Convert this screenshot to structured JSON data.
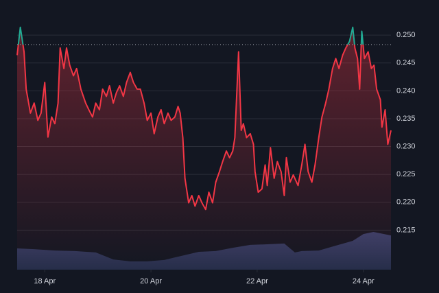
{
  "chart_data": {
    "type": "area",
    "x": [
      17.48,
      17.54,
      17.61,
      17.65,
      17.73,
      17.8,
      17.87,
      17.93,
      18.0,
      18.06,
      18.13,
      18.19,
      18.25,
      18.29,
      18.36,
      18.41,
      18.47,
      18.54,
      18.6,
      18.68,
      18.77,
      18.83,
      18.9,
      18.96,
      19.03,
      19.09,
      19.16,
      19.22,
      19.29,
      19.35,
      19.41,
      19.48,
      19.54,
      19.61,
      19.67,
      19.74,
      19.8,
      19.87,
      19.93,
      20.0,
      20.06,
      20.13,
      20.19,
      20.25,
      20.32,
      20.38,
      20.45,
      20.51,
      20.55,
      20.6,
      20.64,
      20.71,
      20.77,
      20.83,
      20.9,
      20.96,
      21.03,
      21.09,
      21.16,
      21.22,
      21.29,
      21.35,
      21.42,
      21.48,
      21.54,
      21.58,
      21.65,
      21.7,
      21.74,
      21.8,
      21.87,
      21.93,
      21.96,
      22.02,
      22.09,
      22.15,
      22.19,
      22.25,
      22.32,
      22.38,
      22.45,
      22.51,
      22.55,
      22.62,
      22.68,
      22.77,
      22.84,
      22.9,
      22.96,
      23.03,
      23.09,
      23.16,
      23.22,
      23.29,
      23.35,
      23.42,
      23.48,
      23.54,
      23.61,
      23.67,
      23.74,
      23.8,
      23.84,
      23.89,
      23.93,
      23.97,
      24.02,
      24.09,
      24.15,
      24.2,
      24.25,
      24.32,
      24.35,
      24.41,
      24.46,
      24.52
    ],
    "values": [
      0.2464,
      0.2514,
      0.247,
      0.2403,
      0.236,
      0.2378,
      0.2347,
      0.236,
      0.2415,
      0.2317,
      0.2353,
      0.2341,
      0.2378,
      0.2477,
      0.244,
      0.2477,
      0.2446,
      0.2427,
      0.244,
      0.2403,
      0.2378,
      0.2366,
      0.2353,
      0.2378,
      0.2366,
      0.2403,
      0.239,
      0.2409,
      0.2378,
      0.2397,
      0.2409,
      0.239,
      0.2415,
      0.2433,
      0.2415,
      0.2403,
      0.2403,
      0.2378,
      0.2347,
      0.236,
      0.2323,
      0.2353,
      0.2366,
      0.2341,
      0.236,
      0.2347,
      0.2353,
      0.2372,
      0.236,
      0.2316,
      0.2243,
      0.2199,
      0.2212,
      0.2193,
      0.2212,
      0.2199,
      0.2187,
      0.2218,
      0.2199,
      0.2236,
      0.2255,
      0.2273,
      0.2292,
      0.228,
      0.2292,
      0.2316,
      0.247,
      0.2329,
      0.2341,
      0.2316,
      0.2323,
      0.2304,
      0.2255,
      0.2218,
      0.2224,
      0.2267,
      0.223,
      0.2298,
      0.2243,
      0.2273,
      0.2255,
      0.2212,
      0.228,
      0.2236,
      0.2249,
      0.223,
      0.2267,
      0.2304,
      0.2255,
      0.2236,
      0.2267,
      0.2316,
      0.2353,
      0.2378,
      0.2403,
      0.244,
      0.2458,
      0.244,
      0.2464,
      0.2477,
      0.2489,
      0.2514,
      0.2477,
      0.2458,
      0.2403,
      0.2507,
      0.2458,
      0.247,
      0.244,
      0.2446,
      0.2403,
      0.2384,
      0.2335,
      0.2366,
      0.2304,
      0.2329
    ],
    "color": "#f23645",
    "up_color": "#22ab94",
    "baseline": 0.2483,
    "xlim": [
      17.48,
      24.52
    ],
    "xticks": [
      {
        "value": 18,
        "label": "18 Apr"
      },
      {
        "value": 20,
        "label": "20 Apr"
      },
      {
        "value": 22,
        "label": "22 Apr"
      },
      {
        "value": 24,
        "label": "24 Apr"
      }
    ],
    "ylim": [
      0.2079,
      0.2563
    ],
    "yticks": [
      {
        "value": 0.215,
        "label": "0.215"
      },
      {
        "value": 0.22,
        "label": "0.220"
      },
      {
        "value": 0.225,
        "label": "0.225"
      },
      {
        "value": 0.23,
        "label": "0.230"
      },
      {
        "value": 0.235,
        "label": "0.235"
      },
      {
        "value": 0.24,
        "label": "0.240"
      },
      {
        "value": 0.245,
        "label": "0.245"
      },
      {
        "value": 0.25,
        "label": "0.250"
      }
    ],
    "grid": true,
    "volume": {
      "x": [
        17.48,
        17.8,
        18.19,
        18.57,
        18.96,
        19.29,
        19.61,
        19.93,
        20.25,
        20.57,
        20.9,
        21.22,
        21.54,
        21.87,
        22.19,
        22.51,
        22.71,
        22.84,
        23.16,
        23.48,
        23.8,
        24.0,
        24.19,
        24.39,
        24.52
      ],
      "values": [
        7.9,
        7.6,
        7.1,
        6.9,
        6.4,
        3.8,
        3.1,
        3.1,
        3.6,
        5.1,
        6.6,
        6.9,
        8.1,
        9.2,
        9.4,
        9.7,
        6.4,
        6.9,
        7.1,
        8.9,
        10.7,
        13.2,
        14.0,
        13.2,
        12.7
      ],
      "color": "#3a4470",
      "y2lim": [
        0,
        100
      ]
    }
  }
}
